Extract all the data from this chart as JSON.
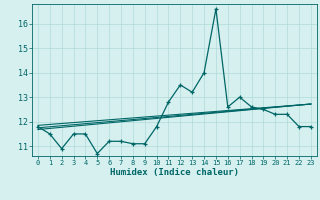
{
  "xlabel": "Humidex (Indice chaleur)",
  "background_color": "#d6f0f0",
  "line_color": "#006666",
  "grid_color": "#b0dada",
  "xlim": [
    -0.5,
    23.5
  ],
  "ylim": [
    10.6,
    16.8
  ],
  "yticks": [
    11,
    12,
    13,
    14,
    15,
    16
  ],
  "xticks": [
    0,
    1,
    2,
    3,
    4,
    5,
    6,
    7,
    8,
    9,
    10,
    11,
    12,
    13,
    14,
    15,
    16,
    17,
    18,
    19,
    20,
    21,
    22,
    23
  ],
  "series1": [
    11.8,
    11.5,
    10.9,
    11.5,
    11.5,
    10.7,
    11.2,
    11.2,
    11.1,
    11.1,
    11.8,
    12.8,
    13.5,
    13.2,
    14.0,
    16.6,
    12.6,
    13.0,
    12.6,
    12.5,
    12.3,
    12.3,
    11.8,
    11.8
  ],
  "trend1_start": 11.85,
  "trend1_end": 12.72,
  "trend2_start": 11.75,
  "trend2_end": 12.72,
  "trend3_start": 11.68,
  "trend3_end": 12.72
}
